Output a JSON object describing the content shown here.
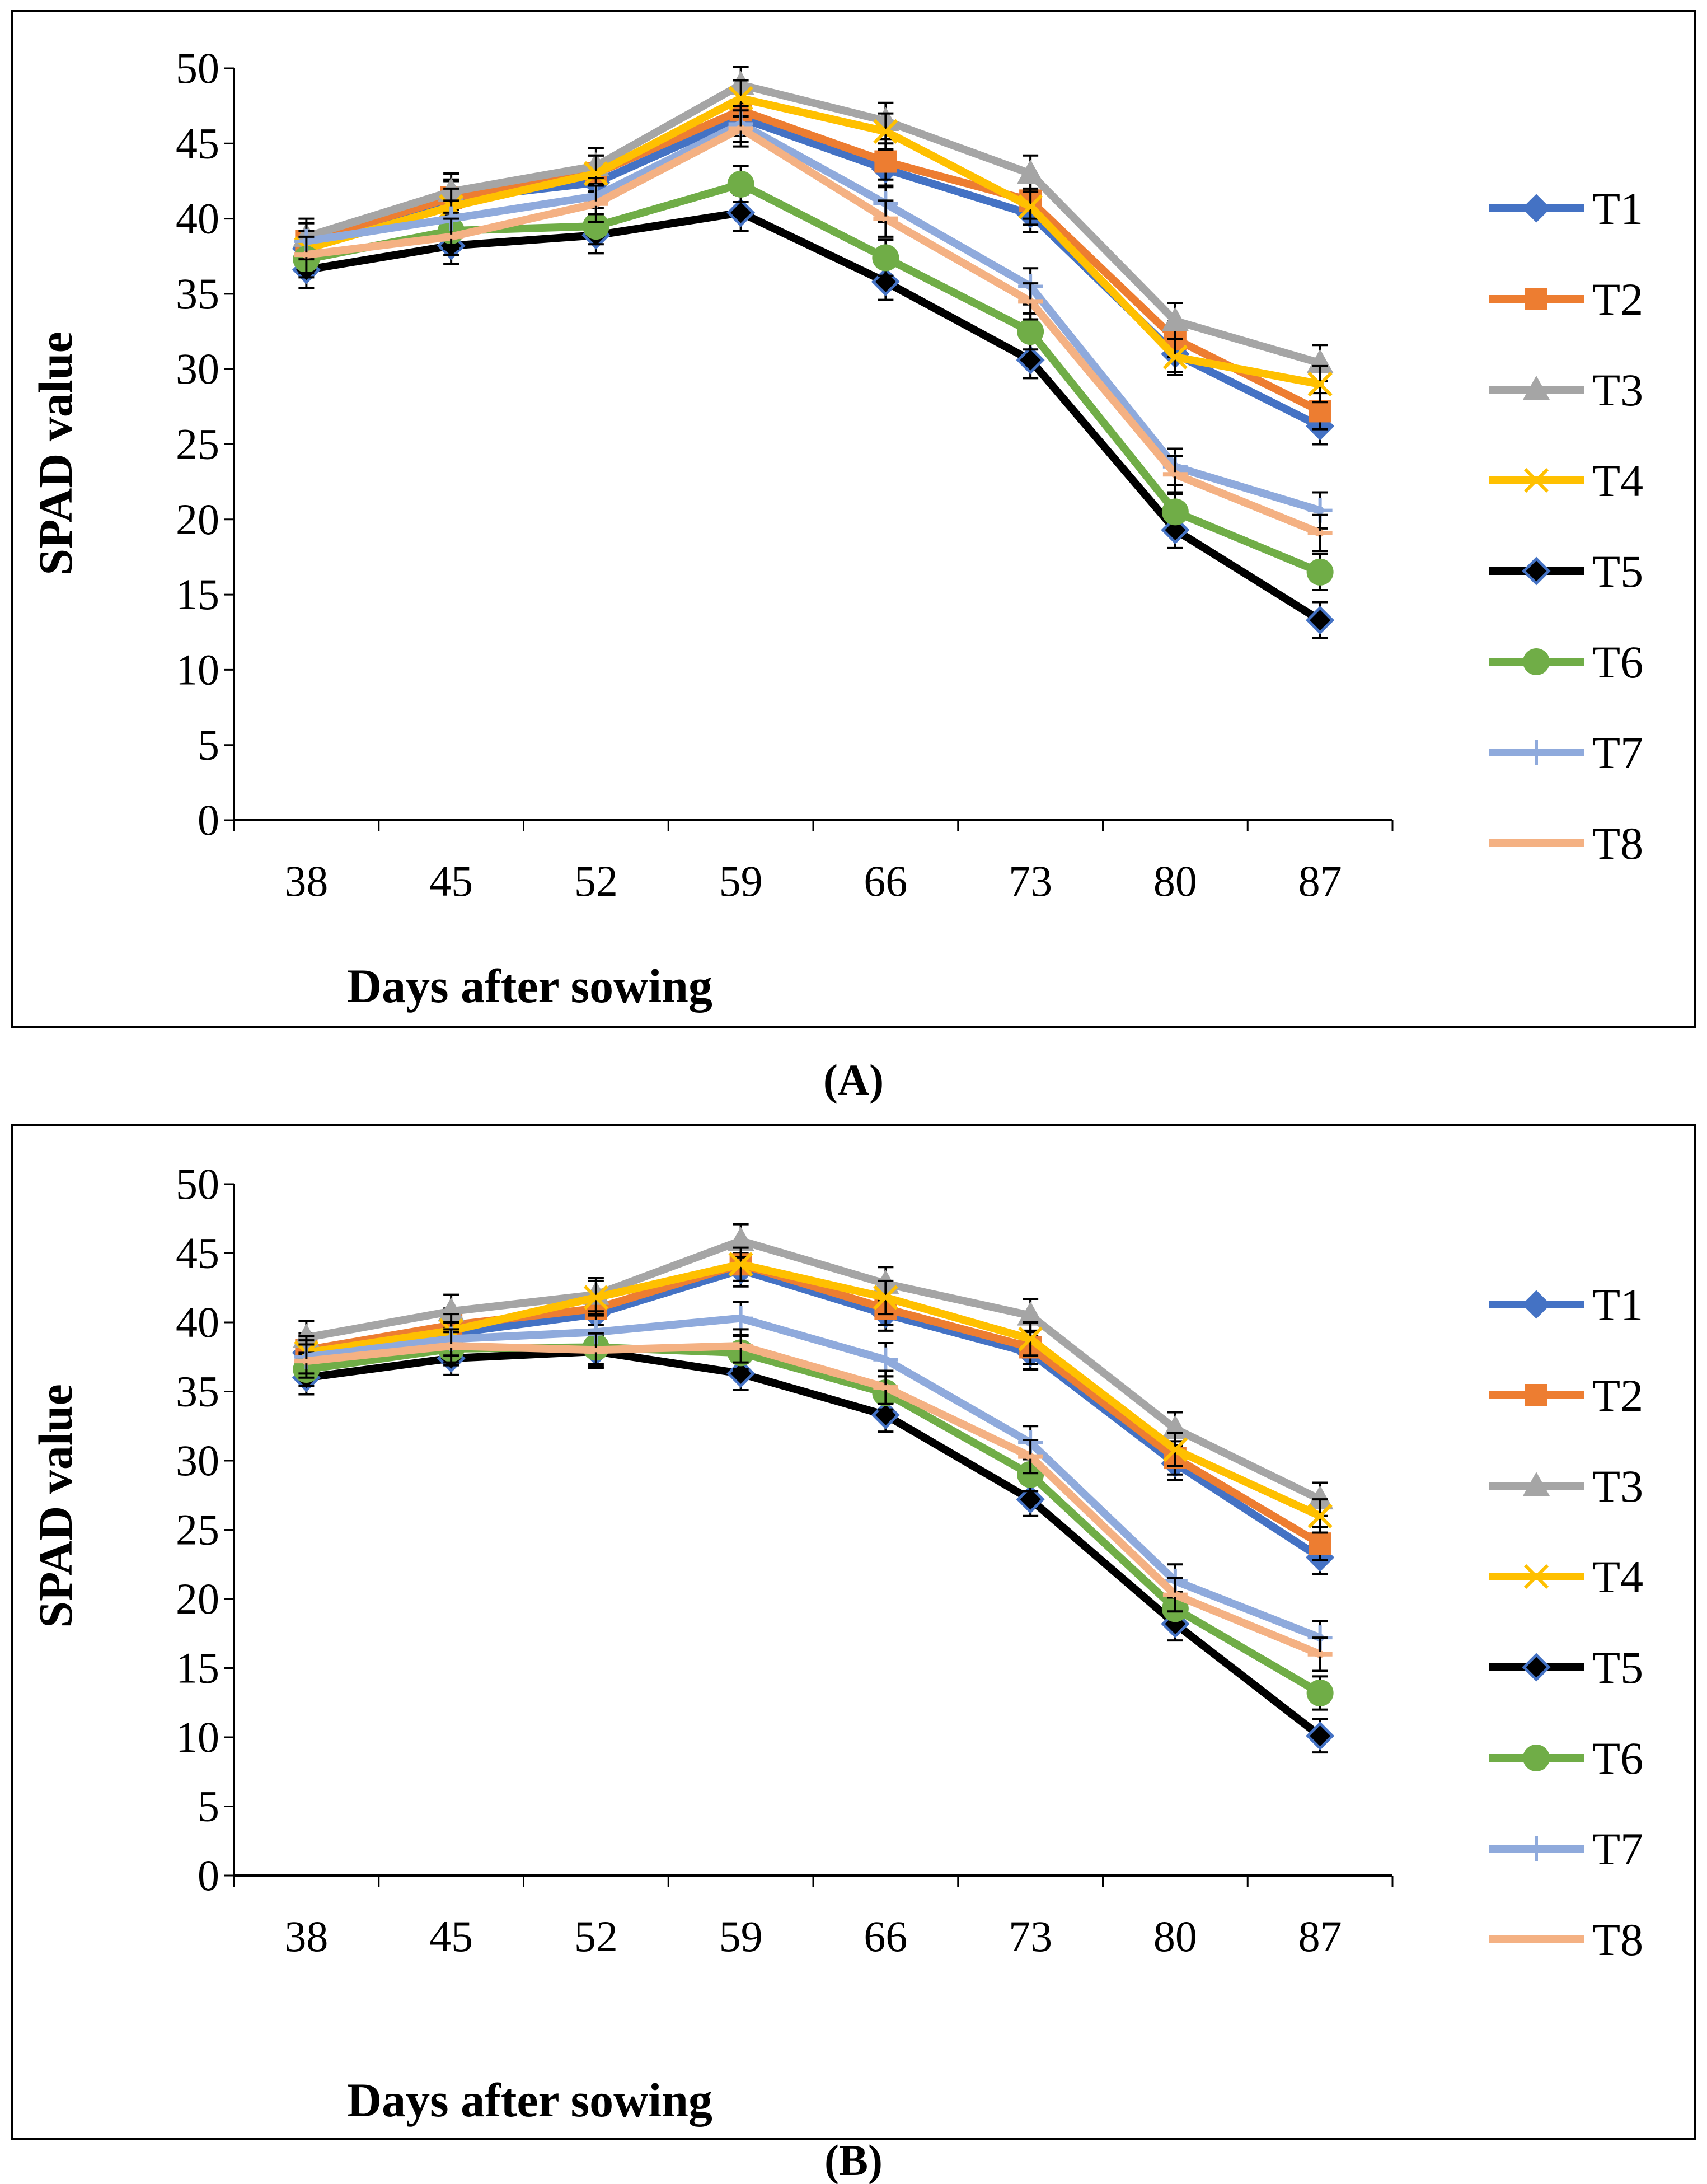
{
  "chart_data": [
    {
      "type": "line",
      "panel_label": "(A)",
      "xlabel": "Days after sowing",
      "ylabel": "SPAD value",
      "ylim": [
        0,
        50
      ],
      "yticks": [
        0,
        5,
        10,
        15,
        20,
        25,
        30,
        35,
        40,
        45,
        50
      ],
      "categories": [
        "38",
        "45",
        "52",
        "59",
        "66",
        "73",
        "80",
        "87"
      ],
      "error_bars": true,
      "legend_position": "right",
      "series": [
        {
          "name": "T1",
          "values": [
            38.0,
            41.3,
            42.4,
            46.7,
            43.3,
            40.3,
            31.0,
            26.2
          ]
        },
        {
          "name": "T2",
          "values": [
            38.5,
            41.4,
            43.0,
            47.2,
            43.8,
            41.2,
            32.0,
            27.2
          ]
        },
        {
          "name": "T3",
          "values": [
            38.8,
            41.8,
            43.5,
            48.9,
            46.5,
            43.0,
            33.2,
            30.4
          ]
        },
        {
          "name": "T4",
          "values": [
            38.0,
            40.8,
            43.0,
            48.0,
            45.8,
            40.8,
            30.8,
            29.0
          ]
        },
        {
          "name": "T5",
          "values": [
            36.6,
            38.2,
            38.9,
            40.4,
            35.8,
            30.6,
            19.3,
            13.3
          ]
        },
        {
          "name": "T6",
          "values": [
            37.3,
            39.2,
            39.5,
            42.3,
            37.4,
            32.5,
            20.5,
            16.5
          ]
        },
        {
          "name": "T7",
          "values": [
            38.5,
            40.0,
            41.5,
            46.3,
            41.0,
            35.5,
            23.5,
            20.6
          ]
        },
        {
          "name": "T8",
          "values": [
            37.6,
            38.8,
            41.0,
            46.0,
            40.0,
            34.5,
            23.0,
            19.1
          ]
        }
      ]
    },
    {
      "type": "line",
      "panel_label": "(B)",
      "xlabel": "Days after sowing",
      "ylabel": "SPAD value",
      "ylim": [
        0,
        50
      ],
      "yticks": [
        0,
        5,
        10,
        15,
        20,
        25,
        30,
        35,
        40,
        45,
        50
      ],
      "categories": [
        "38",
        "45",
        "52",
        "59",
        "66",
        "73",
        "80",
        "87"
      ],
      "error_bars": true,
      "legend_position": "right",
      "series": [
        {
          "name": "T1",
          "values": [
            37.8,
            39.2,
            40.6,
            43.8,
            40.6,
            37.8,
            29.8,
            23.0
          ]
        },
        {
          "name": "T2",
          "values": [
            38.0,
            39.8,
            41.0,
            44.2,
            41.0,
            38.2,
            30.2,
            24.0
          ]
        },
        {
          "name": "T3",
          "values": [
            38.9,
            40.8,
            42.0,
            45.9,
            42.8,
            40.5,
            32.3,
            27.2
          ]
        },
        {
          "name": "T4",
          "values": [
            37.8,
            39.4,
            41.8,
            44.2,
            41.8,
            38.8,
            30.8,
            26.0
          ]
        },
        {
          "name": "T5",
          "values": [
            36.0,
            37.4,
            37.9,
            36.3,
            33.3,
            27.2,
            18.2,
            10.1
          ]
        },
        {
          "name": "T6",
          "values": [
            36.6,
            38.1,
            38.2,
            37.8,
            34.9,
            29.0,
            19.3,
            13.2
          ]
        },
        {
          "name": "T7",
          "values": [
            37.5,
            38.8,
            39.3,
            40.3,
            37.3,
            31.3,
            21.3,
            17.2
          ]
        },
        {
          "name": "T8",
          "values": [
            37.2,
            38.3,
            38.0,
            38.3,
            35.3,
            30.3,
            20.3,
            16.0
          ]
        }
      ]
    }
  ],
  "series_styles": [
    {
      "name": "T1",
      "color": "#4472C4",
      "marker": "diamond"
    },
    {
      "name": "T2",
      "color": "#ED7D31",
      "marker": "square"
    },
    {
      "name": "T3",
      "color": "#A5A5A5",
      "marker": "triangle"
    },
    {
      "name": "T4",
      "color": "#FFC000",
      "marker": "x"
    },
    {
      "name": "T5",
      "color": "#000000",
      "marker": "diamond-blue"
    },
    {
      "name": "T6",
      "color": "#70AD47",
      "marker": "circle"
    },
    {
      "name": "T7",
      "color": "#8FAADC",
      "marker": "plus"
    },
    {
      "name": "T8",
      "color": "#F4B183",
      "marker": "dash"
    }
  ]
}
